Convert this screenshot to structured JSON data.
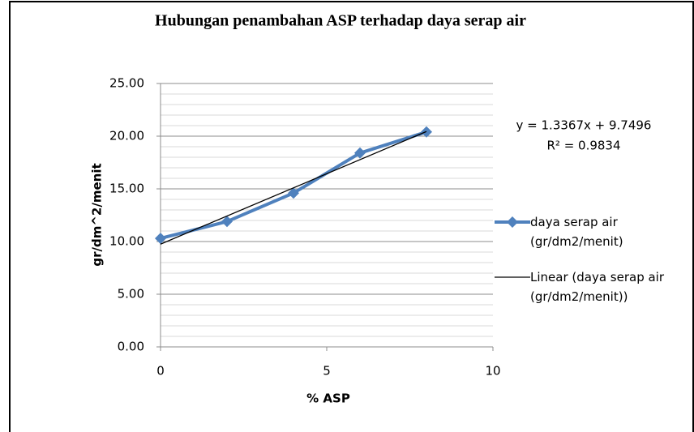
{
  "chart_data": {
    "type": "line",
    "title": "Hubungan penambahan ASP terhadap daya serap air",
    "x_label": "% ASP",
    "y_label": "gr/dm^2/menit",
    "x": [
      0,
      2,
      4,
      6,
      8
    ],
    "series": [
      {
        "name": "daya serap air (gr/dm2/menit)",
        "color": "#4f81bd",
        "values": [
          10.3,
          11.9,
          14.6,
          18.4,
          20.4
        ]
      }
    ],
    "trendline": {
      "name": "Linear (daya serap air (gr/dm2/menit))",
      "color": "#000000",
      "slope": 1.3367,
      "intercept": 9.7496,
      "equation": "y = 1.3367x + 9.7496",
      "r2_label": "R² = 0.9834"
    },
    "xlim": [
      0,
      10
    ],
    "xticks": [
      0,
      5,
      10
    ],
    "ylim": [
      0,
      25
    ],
    "yticks": [
      {
        "value": 0,
        "label": "0.00"
      },
      {
        "value": 5,
        "label": "5.00"
      },
      {
        "value": 10,
        "label": "10.00"
      },
      {
        "value": 15,
        "label": "15.00"
      },
      {
        "value": 20,
        "label": "20.00"
      },
      {
        "value": 25,
        "label": "25.00"
      }
    ],
    "grid": true,
    "minor_grid": true,
    "legend": "right"
  }
}
